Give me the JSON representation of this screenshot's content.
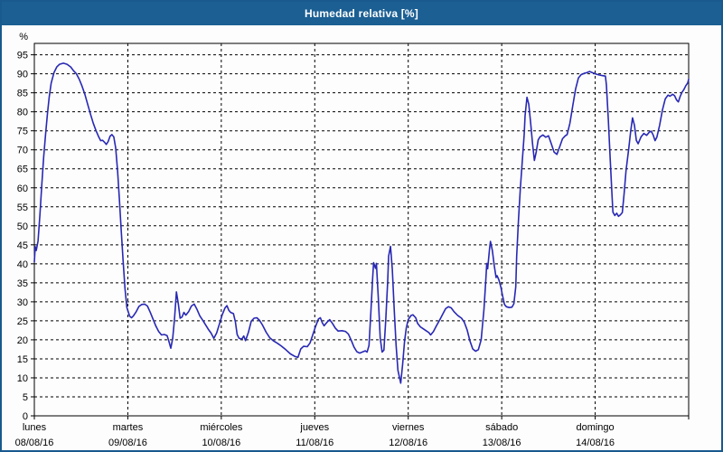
{
  "window": {
    "title": "Humedad relativa [%]"
  },
  "colors": {
    "titlebar": "#1b5f93",
    "window_border": "#19598e",
    "plot_background": "#fdfdfd",
    "grid": "#000000",
    "axis": "#000000",
    "line": "#2828b4",
    "text": "#000000"
  },
  "chart_data": {
    "type": "line",
    "title": "Humedad relativa [%]",
    "xlabel": "",
    "ylabel": "%",
    "ylim": [
      0,
      98
    ],
    "yticks": [
      0,
      5,
      10,
      15,
      20,
      25,
      30,
      35,
      40,
      45,
      50,
      55,
      60,
      65,
      70,
      75,
      80,
      85,
      90,
      95
    ],
    "grid": "dashed",
    "legend_position": "none",
    "x_days": [
      {
        "name": "lunes",
        "date": "08/08/16"
      },
      {
        "name": "martes",
        "date": "09/08/16"
      },
      {
        "name": "miércoles",
        "date": "10/08/16"
      },
      {
        "name": "jueves",
        "date": "11/08/16"
      },
      {
        "name": "viernes",
        "date": "12/08/16"
      },
      {
        "name": "sábado",
        "date": "13/08/16"
      },
      {
        "name": "domingo",
        "date": "14/08/16"
      }
    ],
    "xlim_days": [
      0,
      7
    ],
    "series": [
      {
        "name": "Humedad relativa",
        "color": "#2828b4",
        "points": [
          [
            0,
            40.5
          ],
          [
            0.01,
            44.5
          ],
          [
            0.02,
            43.5
          ],
          [
            0.04,
            46
          ],
          [
            0.06,
            53
          ],
          [
            0.08,
            61
          ],
          [
            0.1,
            68
          ],
          [
            0.12,
            74
          ],
          [
            0.14,
            79.5
          ],
          [
            0.16,
            84
          ],
          [
            0.18,
            87.5
          ],
          [
            0.21,
            90.3
          ],
          [
            0.24,
            91.8
          ],
          [
            0.27,
            92.5
          ],
          [
            0.31,
            92.8
          ],
          [
            0.35,
            92.5
          ],
          [
            0.39,
            91.8
          ],
          [
            0.42,
            90.8
          ],
          [
            0.45,
            90
          ],
          [
            0.48,
            88.6
          ],
          [
            0.51,
            86.8
          ],
          [
            0.54,
            84.6
          ],
          [
            0.57,
            82
          ],
          [
            0.6,
            79.4
          ],
          [
            0.63,
            77
          ],
          [
            0.66,
            75
          ],
          [
            0.69,
            73.3
          ],
          [
            0.71,
            72.4
          ],
          [
            0.73,
            72.5
          ],
          [
            0.75,
            72
          ],
          [
            0.77,
            71.4
          ],
          [
            0.79,
            72.2
          ],
          [
            0.81,
            73.6
          ],
          [
            0.83,
            74
          ],
          [
            0.85,
            73.4
          ],
          [
            0.87,
            70.5
          ],
          [
            0.89,
            64.5
          ],
          [
            0.91,
            57
          ],
          [
            0.93,
            48.5
          ],
          [
            0.95,
            40.5
          ],
          [
            0.97,
            33.5
          ],
          [
            0.99,
            28.5
          ],
          [
            1.02,
            26.2
          ],
          [
            1.04,
            25.8
          ],
          [
            1.06,
            26.3
          ],
          [
            1.09,
            27.4
          ],
          [
            1.12,
            28.8
          ],
          [
            1.15,
            29.3
          ],
          [
            1.18,
            29.4
          ],
          [
            1.21,
            28.9
          ],
          [
            1.24,
            27.2
          ],
          [
            1.27,
            25.4
          ],
          [
            1.3,
            23.6
          ],
          [
            1.33,
            22.2
          ],
          [
            1.36,
            21.3
          ],
          [
            1.39,
            21.4
          ],
          [
            1.42,
            21.1
          ],
          [
            1.44,
            19.6
          ],
          [
            1.46,
            17.8
          ],
          [
            1.48,
            20.4
          ],
          [
            1.5,
            25.5
          ],
          [
            1.52,
            32.6
          ],
          [
            1.54,
            29.5
          ],
          [
            1.56,
            25.7
          ],
          [
            1.58,
            26
          ],
          [
            1.6,
            27.2
          ],
          [
            1.62,
            26.5
          ],
          [
            1.65,
            27.4
          ],
          [
            1.68,
            28.9
          ],
          [
            1.71,
            29.4
          ],
          [
            1.74,
            28
          ],
          [
            1.77,
            26.3
          ],
          [
            1.8,
            25.2
          ],
          [
            1.83,
            24
          ],
          [
            1.86,
            22.8
          ],
          [
            1.89,
            21.8
          ],
          [
            1.92,
            20.4
          ],
          [
            1.95,
            21.8
          ],
          [
            1.98,
            24.2
          ],
          [
            2.01,
            26.6
          ],
          [
            2.04,
            28.4
          ],
          [
            2.06,
            29
          ],
          [
            2.08,
            27.8
          ],
          [
            2.1,
            27.2
          ],
          [
            2.13,
            26.9
          ],
          [
            2.15,
            24.8
          ],
          [
            2.17,
            21.4
          ],
          [
            2.19,
            20.4
          ],
          [
            2.22,
            20.2
          ],
          [
            2.24,
            21
          ],
          [
            2.26,
            19.8
          ],
          [
            2.29,
            22
          ],
          [
            2.32,
            24.9
          ],
          [
            2.35,
            25.7
          ],
          [
            2.38,
            25.8
          ],
          [
            2.41,
            25.1
          ],
          [
            2.44,
            23.9
          ],
          [
            2.48,
            22
          ],
          [
            2.52,
            20.5
          ],
          [
            2.56,
            19.7
          ],
          [
            2.6,
            19.1
          ],
          [
            2.64,
            18.4
          ],
          [
            2.69,
            17.4
          ],
          [
            2.74,
            16.3
          ],
          [
            2.79,
            15.6
          ],
          [
            2.82,
            15.4
          ],
          [
            2.85,
            17.6
          ],
          [
            2.88,
            18.3
          ],
          [
            2.92,
            18.2
          ],
          [
            2.95,
            19.2
          ],
          [
            2.98,
            21.4
          ],
          [
            3.01,
            23.6
          ],
          [
            3.04,
            25.5
          ],
          [
            3.06,
            25.8
          ],
          [
            3.08,
            24.5
          ],
          [
            3.1,
            23.7
          ],
          [
            3.13,
            24.6
          ],
          [
            3.16,
            25.3
          ],
          [
            3.19,
            24.3
          ],
          [
            3.22,
            23.1
          ],
          [
            3.25,
            22.3
          ],
          [
            3.29,
            22.4
          ],
          [
            3.33,
            22.2
          ],
          [
            3.36,
            21.5
          ],
          [
            3.39,
            19.9
          ],
          [
            3.42,
            18.1
          ],
          [
            3.45,
            16.9
          ],
          [
            3.48,
            16.5
          ],
          [
            3.51,
            16.8
          ],
          [
            3.54,
            17.1
          ],
          [
            3.56,
            16.8
          ],
          [
            3.58,
            18.5
          ],
          [
            3.6,
            27
          ],
          [
            3.62,
            36.5
          ],
          [
            3.63,
            40.3
          ],
          [
            3.65,
            38.8
          ],
          [
            3.66,
            40.1
          ],
          [
            3.68,
            31
          ],
          [
            3.7,
            20.5
          ],
          [
            3.72,
            16.8
          ],
          [
            3.74,
            17.3
          ],
          [
            3.76,
            25.5
          ],
          [
            3.78,
            35.5
          ],
          [
            3.79,
            42
          ],
          [
            3.81,
            44.6
          ],
          [
            3.83,
            38.5
          ],
          [
            3.85,
            28
          ],
          [
            3.87,
            18.5
          ],
          [
            3.89,
            12
          ],
          [
            3.91,
            9.7
          ],
          [
            3.92,
            8.6
          ],
          [
            3.94,
            13.5
          ],
          [
            3.96,
            19.5
          ],
          [
            3.98,
            23.2
          ],
          [
            4.0,
            25.3
          ],
          [
            4.03,
            26.4
          ],
          [
            4.05,
            26.6
          ],
          [
            4.08,
            25.8
          ],
          [
            4.1,
            24.3
          ],
          [
            4.13,
            23.4
          ],
          [
            4.16,
            22.9
          ],
          [
            4.19,
            22.4
          ],
          [
            4.22,
            21.9
          ],
          [
            4.24,
            21.3
          ],
          [
            4.27,
            22.2
          ],
          [
            4.3,
            23.6
          ],
          [
            4.34,
            25.4
          ],
          [
            4.37,
            26.8
          ],
          [
            4.4,
            28.2
          ],
          [
            4.43,
            28.7
          ],
          [
            4.46,
            28.4
          ],
          [
            4.49,
            27.4
          ],
          [
            4.53,
            26.4
          ],
          [
            4.57,
            25.7
          ],
          [
            4.6,
            24.6
          ],
          [
            4.63,
            22.6
          ],
          [
            4.66,
            19.7
          ],
          [
            4.69,
            17.6
          ],
          [
            4.72,
            17
          ],
          [
            4.75,
            17.4
          ],
          [
            4.78,
            20
          ],
          [
            4.81,
            28
          ],
          [
            4.83,
            36
          ],
          [
            4.84,
            40.1
          ],
          [
            4.85,
            38.7
          ],
          [
            4.87,
            44
          ],
          [
            4.88,
            45.9
          ],
          [
            4.9,
            43.5
          ],
          [
            4.92,
            39.5
          ],
          [
            4.94,
            36.4
          ],
          [
            4.95,
            36.9
          ],
          [
            4.97,
            35.8
          ],
          [
            4.99,
            34
          ],
          [
            5.01,
            31.5
          ],
          [
            5.03,
            29.3
          ],
          [
            5.05,
            28.7
          ],
          [
            5.08,
            28.5
          ],
          [
            5.11,
            28.6
          ],
          [
            5.13,
            29.5
          ],
          [
            5.15,
            34
          ],
          [
            5.16,
            42
          ],
          [
            5.18,
            52
          ],
          [
            5.2,
            60
          ],
          [
            5.22,
            67
          ],
          [
            5.24,
            74
          ],
          [
            5.25,
            79
          ],
          [
            5.27,
            83.8
          ],
          [
            5.29,
            82
          ],
          [
            5.31,
            77
          ],
          [
            5.33,
            71.5
          ],
          [
            5.35,
            67.2
          ],
          [
            5.37,
            69.5
          ],
          [
            5.39,
            72.6
          ],
          [
            5.41,
            73.4
          ],
          [
            5.44,
            73.9
          ],
          [
            5.47,
            73.3
          ],
          [
            5.5,
            73.7
          ],
          [
            5.53,
            71.6
          ],
          [
            5.56,
            69.4
          ],
          [
            5.59,
            68.8
          ],
          [
            5.62,
            70.8
          ],
          [
            5.65,
            72.9
          ],
          [
            5.68,
            73.7
          ],
          [
            5.7,
            74
          ],
          [
            5.73,
            77
          ],
          [
            5.76,
            81.5
          ],
          [
            5.79,
            86
          ],
          [
            5.82,
            88.9
          ],
          [
            5.85,
            89.8
          ],
          [
            5.88,
            90.1
          ],
          [
            5.91,
            90.3
          ],
          [
            5.94,
            90.6
          ],
          [
            5.97,
            90.3
          ],
          [
            6.0,
            90
          ],
          [
            6.04,
            89.7
          ],
          [
            6.08,
            89.5
          ],
          [
            6.11,
            89.4
          ],
          [
            6.12,
            87
          ],
          [
            6.14,
            78
          ],
          [
            6.16,
            68
          ],
          [
            6.18,
            58
          ],
          [
            6.19,
            53.6
          ],
          [
            6.21,
            52.7
          ],
          [
            6.23,
            53.3
          ],
          [
            6.25,
            52.5
          ],
          [
            6.27,
            52.9
          ],
          [
            6.29,
            53.5
          ],
          [
            6.31,
            58.5
          ],
          [
            6.33,
            64.5
          ],
          [
            6.36,
            70.5
          ],
          [
            6.38,
            75
          ],
          [
            6.4,
            78.4
          ],
          [
            6.42,
            76.5
          ],
          [
            6.44,
            72.5
          ],
          [
            6.46,
            71.6
          ],
          [
            6.49,
            73.4
          ],
          [
            6.52,
            74.3
          ],
          [
            6.55,
            73.8
          ],
          [
            6.58,
            74.7
          ],
          [
            6.6,
            74.9
          ],
          [
            6.62,
            73.9
          ],
          [
            6.64,
            72.4
          ],
          [
            6.66,
            73.3
          ],
          [
            6.69,
            76.5
          ],
          [
            6.72,
            80.5
          ],
          [
            6.75,
            83.4
          ],
          [
            6.78,
            84.4
          ],
          [
            6.8,
            84.1
          ],
          [
            6.83,
            84.6
          ],
          [
            6.85,
            84.2
          ],
          [
            6.87,
            83.1
          ],
          [
            6.89,
            82.6
          ],
          [
            6.91,
            84.1
          ],
          [
            6.93,
            85.2
          ],
          [
            6.95,
            85.9
          ],
          [
            6.97,
            86.9
          ],
          [
            6.99,
            87.6
          ],
          [
            7.0,
            88.6
          ]
        ]
      }
    ]
  }
}
